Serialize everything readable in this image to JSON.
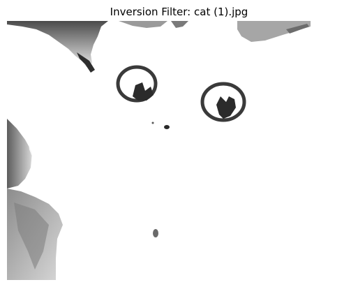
{
  "figure": {
    "title": "Inversion Filter: cat (1).jpg"
  },
  "image": {
    "subject": "cat-face",
    "filter": "inversion",
    "palette": {
      "background": "#ffffff",
      "dark": "#2a2a2a",
      "mid": "#6f6f6f",
      "light": "#bdbdbd"
    }
  }
}
